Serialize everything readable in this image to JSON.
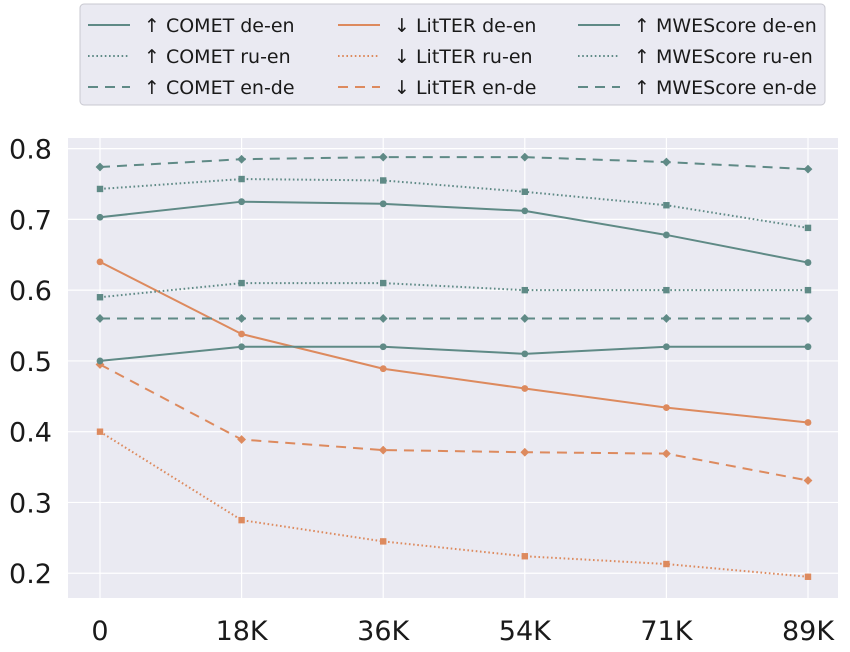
{
  "chart_data": {
    "type": "line",
    "categories": [
      "0",
      "18K",
      "36K",
      "54K",
      "71K",
      "89K"
    ],
    "ylim": [
      0.165,
      0.815
    ],
    "yticks": [
      0.2,
      0.3,
      0.4,
      0.5,
      0.6,
      0.7,
      0.8
    ],
    "ytick_labels": [
      "0.2",
      "0.3",
      "0.4",
      "0.5",
      "0.6",
      "0.7",
      "0.8"
    ],
    "grid": true,
    "legend_placement": "top, above plot, 3 columns",
    "series": [
      {
        "name": "↑ COMET de-en",
        "color": "#5f8a86",
        "dash": "solid",
        "marker": "circle",
        "values": [
          0.703,
          0.725,
          0.722,
          0.712,
          0.678,
          0.639
        ]
      },
      {
        "name": "↑ COMET ru-en",
        "color": "#5f8a86",
        "dash": "dotted",
        "marker": "square",
        "values": [
          0.743,
          0.757,
          0.755,
          0.739,
          0.72,
          0.688
        ]
      },
      {
        "name": "↑ COMET en-de",
        "color": "#5f8a86",
        "dash": "dashed",
        "marker": "diamond",
        "values": [
          0.774,
          0.785,
          0.788,
          0.788,
          0.781,
          0.771
        ]
      },
      {
        "name": "↓ LitTER de-en",
        "color": "#dd8a5e",
        "dash": "solid",
        "marker": "circle",
        "values": [
          0.64,
          0.538,
          0.489,
          0.461,
          0.434,
          0.413
        ]
      },
      {
        "name": "↓ LitTER ru-en",
        "color": "#dd8a5e",
        "dash": "dotted",
        "marker": "square",
        "values": [
          0.4,
          0.275,
          0.245,
          0.224,
          0.213,
          0.195
        ]
      },
      {
        "name": "↓ LitTER en-de",
        "color": "#dd8a5e",
        "dash": "dashed",
        "marker": "diamond",
        "values": [
          0.495,
          0.389,
          0.374,
          0.371,
          0.369,
          0.331
        ]
      },
      {
        "name": "↑ MWEScore de-en",
        "color": "#5f8a86",
        "dash": "solid",
        "marker": "circle",
        "values": [
          0.5,
          0.52,
          0.52,
          0.51,
          0.52,
          0.52
        ]
      },
      {
        "name": "↑ MWEScore ru-en",
        "color": "#5f8a86",
        "dash": "dotted",
        "marker": "square",
        "values": [
          0.59,
          0.61,
          0.61,
          0.6,
          0.6,
          0.6
        ]
      },
      {
        "name": "↑ MWEScore en-de",
        "color": "#5f8a86",
        "dash": "dashed",
        "marker": "diamond",
        "values": [
          0.56,
          0.56,
          0.56,
          0.56,
          0.56,
          0.56
        ]
      }
    ]
  }
}
